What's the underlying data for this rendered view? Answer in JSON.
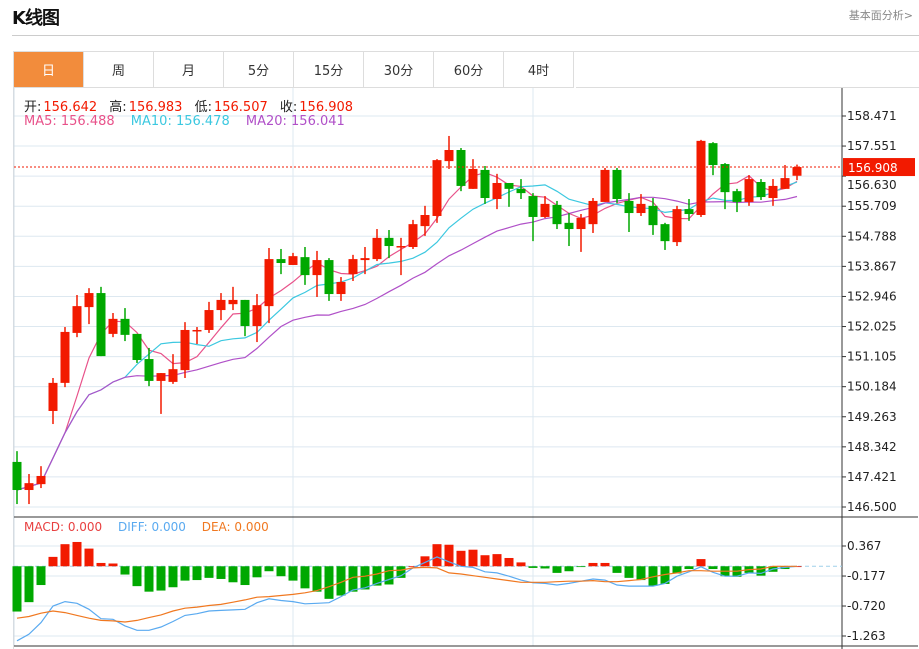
{
  "header": {
    "title": "K线图",
    "link": "基本面分析>"
  },
  "tabs": [
    {
      "label": "日",
      "active": true
    },
    {
      "label": "周"
    },
    {
      "label": "月"
    },
    {
      "label": "5分"
    },
    {
      "label": "15分"
    },
    {
      "label": "30分"
    },
    {
      "label": "60分"
    },
    {
      "label": "4时"
    }
  ],
  "ohlc_legend": {
    "open_label": "开:",
    "open": "156.642",
    "high_label": "高:",
    "high": "156.983",
    "low_label": "低:",
    "low": "156.507",
    "close_label": "收:",
    "close": "156.908"
  },
  "ma_legend": {
    "ma5": "MA5: 156.488",
    "ma10": "MA10: 156.478",
    "ma20": "MA20: 156.041"
  },
  "macd_legend": {
    "macd": "MACD: 0.000",
    "diff": "DIFF: 0.000",
    "dea": "DEA: 0.000"
  },
  "colors": {
    "up": "#f21a00",
    "down": "#00a800",
    "ma5": "#e8528a",
    "ma10": "#3cc8e0",
    "ma20": "#b050c8",
    "diff": "#5aaaf0",
    "dea": "#f07820",
    "active_tab": "#f28c3c"
  },
  "chart_data": [
    {
      "type": "candlestick",
      "yticks": [
        "158.471",
        "157.551",
        "156.630",
        "155.709",
        "154.788",
        "153.867",
        "152.946",
        "152.025",
        "151.105",
        "150.184",
        "149.263",
        "148.342",
        "147.421",
        "146.500"
      ],
      "ylim": [
        146.5,
        158.471
      ],
      "last_price": "156.908",
      "ma_periods": [
        5,
        10,
        20
      ],
      "ohlc": [
        [
          147.88,
          148.21,
          146.59,
          147.02
        ],
        [
          147.02,
          147.51,
          146.59,
          147.23
        ],
        [
          147.2,
          147.75,
          147.08,
          147.45
        ],
        [
          149.44,
          150.45,
          149.04,
          150.3
        ],
        [
          150.3,
          152.01,
          150.17,
          151.86
        ],
        [
          151.83,
          152.99,
          151.7,
          152.65
        ],
        [
          152.62,
          153.2,
          152.1,
          153.05
        ],
        [
          153.05,
          153.24,
          151.12,
          151.12
        ],
        [
          151.8,
          152.44,
          151.7,
          152.26
        ],
        [
          152.26,
          152.59,
          151.58,
          151.77
        ],
        [
          151.8,
          151.8,
          150.91,
          151.0
        ],
        [
          151.03,
          151.37,
          150.2,
          150.36
        ],
        [
          150.36,
          150.6,
          149.35,
          150.6
        ],
        [
          150.33,
          151.18,
          150.27,
          150.72
        ],
        [
          150.69,
          152.16,
          150.45,
          151.92
        ],
        [
          151.89,
          152.01,
          151.49,
          151.92
        ],
        [
          151.92,
          152.78,
          151.83,
          152.53
        ],
        [
          152.53,
          153.05,
          152.22,
          152.84
        ],
        [
          152.71,
          153.24,
          152.53,
          152.84
        ],
        [
          152.84,
          152.84,
          151.73,
          152.04
        ],
        [
          152.04,
          153.02,
          151.55,
          152.68
        ],
        [
          152.65,
          154.43,
          152.13,
          154.09
        ],
        [
          154.09,
          154.4,
          153.63,
          153.97
        ],
        [
          153.91,
          154.28,
          153.91,
          154.18
        ],
        [
          154.15,
          154.46,
          153.3,
          153.6
        ],
        [
          153.6,
          154.34,
          152.93,
          154.06
        ],
        [
          154.06,
          154.12,
          152.81,
          153.02
        ],
        [
          153.02,
          153.54,
          152.81,
          153.39
        ],
        [
          153.63,
          154.22,
          153.42,
          154.09
        ],
        [
          154.06,
          154.46,
          153.63,
          154.12
        ],
        [
          154.09,
          155.01,
          154.03,
          154.74
        ],
        [
          154.74,
          154.98,
          154.12,
          154.49
        ],
        [
          154.46,
          154.74,
          153.6,
          154.49
        ],
        [
          154.46,
          155.29,
          154.4,
          155.16
        ],
        [
          155.1,
          155.72,
          154.8,
          155.44
        ],
        [
          155.41,
          157.15,
          155.2,
          157.12
        ],
        [
          157.09,
          157.86,
          156.85,
          157.43
        ],
        [
          157.43,
          157.49,
          156.17,
          156.33
        ],
        [
          156.24,
          157.15,
          156.24,
          156.85
        ],
        [
          156.82,
          156.94,
          155.78,
          155.96
        ],
        [
          155.93,
          156.7,
          155.62,
          156.42
        ],
        [
          156.42,
          156.42,
          155.69,
          156.24
        ],
        [
          156.24,
          156.54,
          155.93,
          156.11
        ],
        [
          156.02,
          156.11,
          154.64,
          155.38
        ],
        [
          155.38,
          156.02,
          155.35,
          155.78
        ],
        [
          155.75,
          155.87,
          155.01,
          155.16
        ],
        [
          155.2,
          155.5,
          154.49,
          155.01
        ],
        [
          155.01,
          155.47,
          154.31,
          155.35
        ],
        [
          155.16,
          155.96,
          154.89,
          155.87
        ],
        [
          155.84,
          156.88,
          155.84,
          156.82
        ],
        [
          156.82,
          156.88,
          155.81,
          155.93
        ],
        [
          155.87,
          156.11,
          154.92,
          155.5
        ],
        [
          155.5,
          156.08,
          155.41,
          155.78
        ],
        [
          155.72,
          155.96,
          154.83,
          155.13
        ],
        [
          155.16,
          155.2,
          154.37,
          154.64
        ],
        [
          154.61,
          155.72,
          154.49,
          155.62
        ],
        [
          155.62,
          155.93,
          155.26,
          155.47
        ],
        [
          155.44,
          157.74,
          155.38,
          157.71
        ],
        [
          157.64,
          157.67,
          156.66,
          156.97
        ],
        [
          157.0,
          157.03,
          155.62,
          156.14
        ],
        [
          156.17,
          156.24,
          155.53,
          155.84
        ],
        [
          155.84,
          156.66,
          155.72,
          156.54
        ],
        [
          156.45,
          156.54,
          155.9,
          155.99
        ],
        [
          155.96,
          156.54,
          155.72,
          156.33
        ],
        [
          156.24,
          156.97,
          156.24,
          156.57
        ],
        [
          156.642,
          156.983,
          156.507,
          156.908
        ]
      ]
    },
    {
      "type": "bar",
      "yticks": [
        "0.367",
        "-0.177",
        "-0.720",
        "-1.263"
      ],
      "ylim": [
        -1.263,
        0.367
      ],
      "macd": [
        -0.82,
        -0.65,
        -0.34,
        0.17,
        0.4,
        0.44,
        0.32,
        0.06,
        0.05,
        -0.15,
        -0.36,
        -0.46,
        -0.44,
        -0.38,
        -0.26,
        -0.25,
        -0.21,
        -0.23,
        -0.29,
        -0.34,
        -0.2,
        -0.09,
        -0.18,
        -0.26,
        -0.4,
        -0.46,
        -0.59,
        -0.53,
        -0.46,
        -0.42,
        -0.35,
        -0.33,
        -0.21,
        0.0,
        0.18,
        0.4,
        0.39,
        0.28,
        0.3,
        0.2,
        0.22,
        0.15,
        0.07,
        -0.03,
        -0.04,
        -0.12,
        -0.09,
        -0.01,
        0.06,
        0.06,
        -0.12,
        -0.21,
        -0.25,
        -0.35,
        -0.32,
        -0.13,
        -0.05,
        0.13,
        -0.05,
        -0.18,
        -0.19,
        -0.12,
        -0.17,
        -0.1,
        -0.05,
        0.0
      ],
      "diff": [
        -1.35,
        -1.23,
        -1.02,
        -0.72,
        -0.64,
        -0.67,
        -0.78,
        -0.95,
        -0.96,
        -1.08,
        -1.16,
        -1.16,
        -1.1,
        -1.0,
        -0.89,
        -0.86,
        -0.81,
        -0.8,
        -0.79,
        -0.78,
        -0.66,
        -0.59,
        -0.62,
        -0.64,
        -0.68,
        -0.67,
        -0.66,
        -0.55,
        -0.43,
        -0.39,
        -0.31,
        -0.24,
        -0.17,
        -0.03,
        0.07,
        0.17,
        0.08,
        0.0,
        -0.02,
        -0.1,
        -0.12,
        -0.18,
        -0.25,
        -0.3,
        -0.31,
        -0.34,
        -0.31,
        -0.27,
        -0.23,
        -0.25,
        -0.34,
        -0.36,
        -0.36,
        -0.36,
        -0.31,
        -0.18,
        -0.1,
        -0.01,
        -0.11,
        -0.18,
        -0.18,
        -0.12,
        -0.13,
        -0.05,
        -0.02,
        0.0
      ],
      "dea": [
        -0.94,
        -0.91,
        -0.85,
        -0.81,
        -0.84,
        -0.89,
        -0.94,
        -0.98,
        -0.99,
        -1.01,
        -0.98,
        -0.93,
        -0.88,
        -0.81,
        -0.76,
        -0.74,
        -0.71,
        -0.69,
        -0.65,
        -0.61,
        -0.56,
        -0.55,
        -0.53,
        -0.51,
        -0.48,
        -0.44,
        -0.37,
        -0.29,
        -0.2,
        -0.18,
        -0.14,
        -0.08,
        -0.07,
        -0.03,
        -0.02,
        -0.03,
        -0.12,
        -0.14,
        -0.17,
        -0.2,
        -0.23,
        -0.26,
        -0.29,
        -0.29,
        -0.29,
        -0.28,
        -0.27,
        -0.27,
        -0.26,
        -0.28,
        -0.28,
        -0.26,
        -0.24,
        -0.19,
        -0.15,
        -0.12,
        -0.08,
        -0.08,
        -0.09,
        -0.09,
        -0.09,
        -0.06,
        -0.05,
        0.0,
        0.0,
        0.0
      ]
    }
  ]
}
